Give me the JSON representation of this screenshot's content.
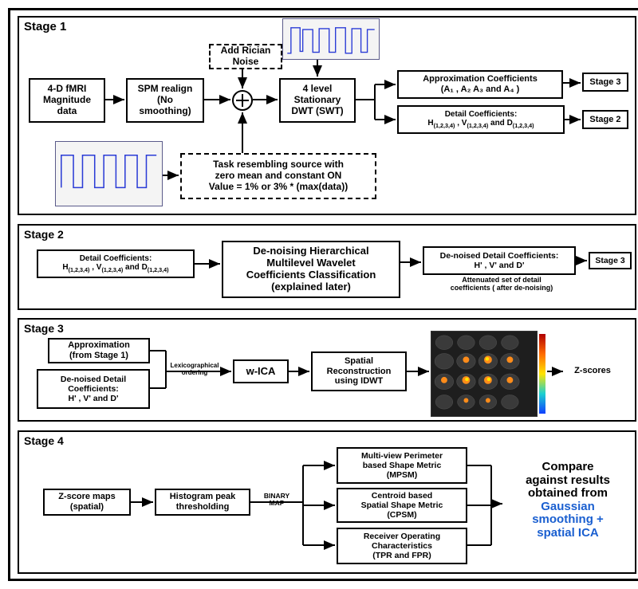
{
  "font": {
    "label_pt": 12,
    "small_pt": 9,
    "tiny_pt": 8
  },
  "colors": {
    "border": "#000000",
    "bg": "#ffffff",
    "signal": "#2a3bd6",
    "plot_bg": "#f4f4f4",
    "brain_bg": "#1e1e1e",
    "accent": "#1a5fd0"
  },
  "stage1": {
    "title": "Stage 1",
    "b_fmri": "4-D fMRI\nMagnitude\ndata",
    "b_spm": "SPM realign\n(No\nsmoothing)",
    "b_noise": "Add Rician\nNoise",
    "b_swt": "4 level\nStationary\nDWT (SWT)",
    "b_task": "Task resembling source with\nzero mean and constant ON\nValue = 1% or 3%  * (max(data))",
    "b_approx": "Approximation Coefficients\n(A₁ , A₂  A₃ and A₄ )",
    "b_detail": "Detail Coefficients:\nH(1,2,3,4) , V(1,2,3,4) and D(1,2,3,4)",
    "to3": "Stage 3",
    "to2": "Stage 2"
  },
  "stage2": {
    "title": "Stage 2",
    "b_in": "Detail Coefficients:\nH(1,2,3,4) , V(1,2,3,4) and D(1,2,3,4)",
    "b_denoise": "De-noising Hierarchical\nMultilevel Wavelet\nCoefficients Classification\n(explained later)",
    "b_out": "De-noised Detail Coefficients:\nH' , V' and D'",
    "b_out_sub": "Attenuated set of detail\ncoefficients ( after de-noising)",
    "to3": "Stage 3"
  },
  "stage3": {
    "title": "Stage 3",
    "b_approx": "Approximation\n(from Stage 1)",
    "b_detail": "De-noised Detail\nCoefficients:\nH' , V' and D'",
    "l_order": "Lexicographical\nordering",
    "b_wica": "w-ICA",
    "b_recon": "Spatial\nReconstruction\nusing IDWT",
    "l_zs": "Z-scores"
  },
  "stage4": {
    "title": "Stage 4",
    "b_zmap": "Z-score maps\n(spatial)",
    "b_hist": "Histogram peak\nthresholding",
    "l_bin": "BINARY\nMAP",
    "b_mpsm": "Multi-view Perimeter\nbased Shape Metric\n(MPSM)",
    "b_cpsm": "Centroid based\nSpatial Shape Metric\n(CPSM)",
    "b_roc": "Receiver Operating\nCharacteristics\n(TPR and FPR)",
    "r_hdr": "Compare\nagainst results\nobtained from",
    "r_blue": "Gaussian\nsmoothing +\nspatial ICA"
  }
}
